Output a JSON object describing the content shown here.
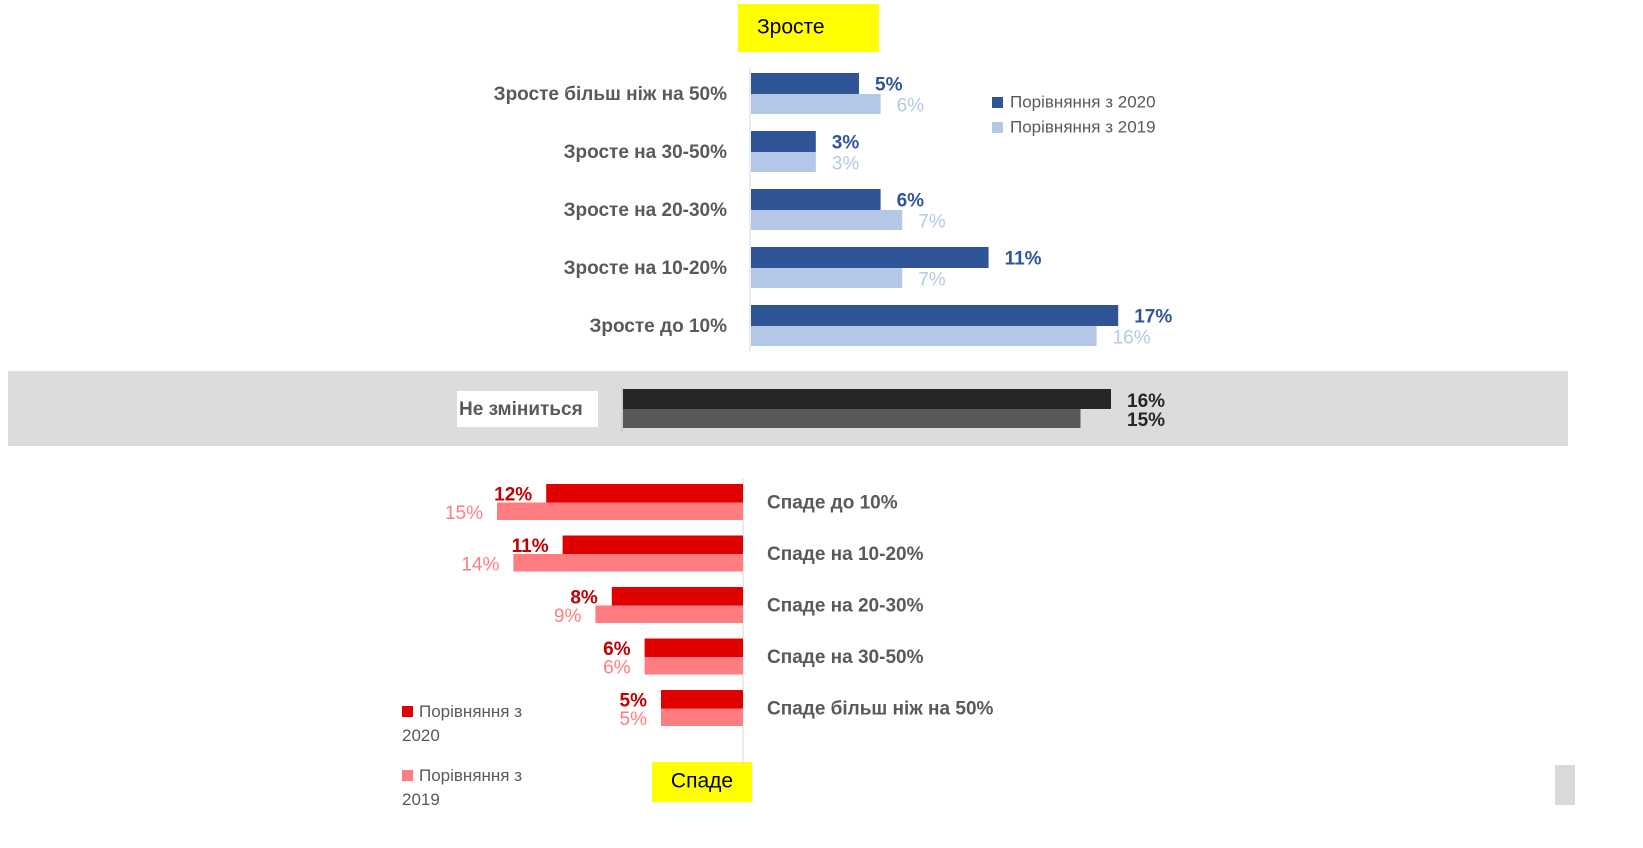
{
  "chart_data": [
    {
      "type": "bar",
      "orientation": "horizontal",
      "title": "Зросте",
      "categories": [
        "Зросте більш ніж на 50%",
        "Зросте на 30-50%",
        "Зросте на 20-30%",
        "Зросте на 10-20%",
        "Зросте до 10%"
      ],
      "series": [
        {
          "name": "Порівняння з 2020",
          "color": "#2f5597",
          "values": [
            5,
            3,
            6,
            11,
            17
          ],
          "value_labels": [
            "5%",
            "3%",
            "6%",
            "11%",
            "17%"
          ]
        },
        {
          "name": "Порівняння з 2019",
          "color": "#b4c7e7",
          "values": [
            6,
            3,
            7,
            7,
            16
          ],
          "value_labels": [
            "6%",
            "3%",
            "7%",
            "7%",
            "16%"
          ]
        }
      ],
      "xlim": [
        0,
        20
      ],
      "legend": "upper right"
    },
    {
      "type": "bar",
      "orientation": "horizontal",
      "categories": [
        "Не зміниться"
      ],
      "series": [
        {
          "color": "#262626",
          "values": [
            16
          ],
          "value_labels": [
            "16%"
          ]
        },
        {
          "color": "#595959",
          "values": [
            15
          ],
          "value_labels": [
            "15%"
          ]
        }
      ],
      "xlim": [
        0,
        20
      ]
    },
    {
      "type": "bar",
      "orientation": "horizontal",
      "direction": "reversed",
      "title": "Спаде",
      "categories": [
        "Спаде до 10%",
        "Спаде на 10-20%",
        "Спаде на 20-30%",
        "Спаде на 30-50%",
        "Спаде більш ніж на 50%"
      ],
      "series": [
        {
          "name": "Порівняння з 2020",
          "color": "#e00000",
          "values": [
            12,
            11,
            8,
            6,
            5
          ],
          "value_labels": [
            "12%",
            "11%",
            "8%",
            "6%",
            "5%"
          ]
        },
        {
          "name": "Порівняння з 2019",
          "color": "#ff7c80",
          "values": [
            15,
            14,
            9,
            6,
            5
          ],
          "value_labels": [
            "15%",
            "14%",
            "9%",
            "6%",
            "5%"
          ]
        }
      ],
      "xlim": [
        0,
        20
      ],
      "legend": "lower left"
    }
  ]
}
